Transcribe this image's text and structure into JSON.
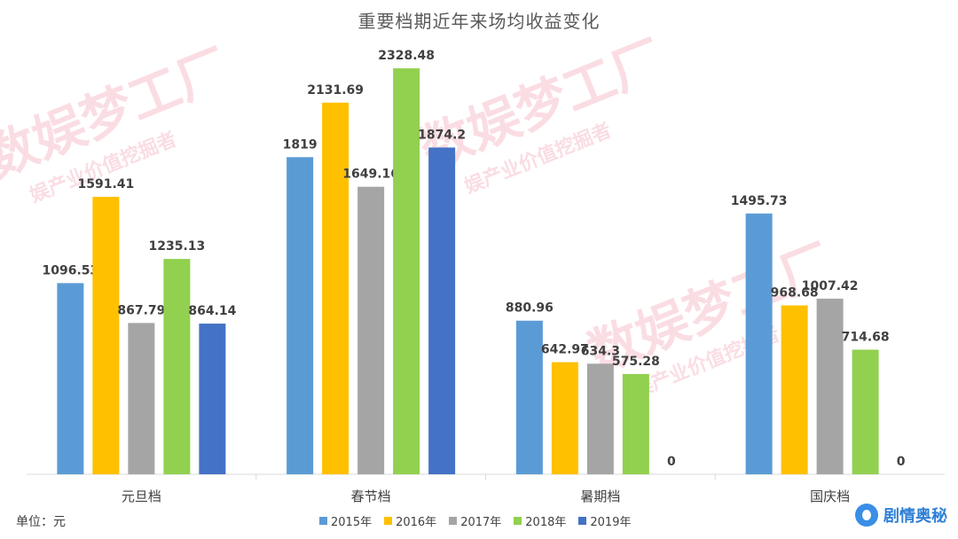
{
  "chart_data": {
    "type": "bar",
    "title": "重要档期近年来场均收益变化",
    "categories": [
      "元旦档",
      "春节档",
      "暑期档",
      "国庆档"
    ],
    "series": [
      {
        "name": "2015年",
        "color": "#5b9bd5",
        "values": [
          1096.53,
          1819,
          880.96,
          1495.73
        ],
        "labels": [
          "1096.53",
          "1819",
          "880.96",
          "1495.73"
        ]
      },
      {
        "name": "2016年",
        "color": "#ffc000",
        "values": [
          1591.41,
          2131.69,
          642.97,
          968.68
        ],
        "labels": [
          "1591.41",
          "2131.69",
          "642.97",
          "968.68"
        ]
      },
      {
        "name": "2017年",
        "color": "#a5a5a5",
        "values": [
          867.79,
          1649.16,
          634.3,
          1007.42
        ],
        "labels": [
          "867.79",
          "1649.16",
          "634.3",
          "1007.42"
        ]
      },
      {
        "name": "2018年",
        "color": "#92d050",
        "values": [
          1235.13,
          2328.48,
          575.28,
          714.68
        ],
        "labels": [
          "1235.13",
          "2328.48",
          "575.28",
          "714.68"
        ]
      },
      {
        "name": "2019年",
        "color": "#4472c4",
        "values": [
          864.14,
          1874.2,
          0,
          0
        ],
        "labels": [
          "864.14",
          "1874.2",
          "0",
          "0"
        ]
      }
    ],
    "ylim": [
      0,
      2400
    ],
    "ylabel": "",
    "xlabel": "",
    "grid": false,
    "legend_position": "bottom",
    "unit_label": "单位：元"
  },
  "watermark": {
    "text": "数娱梦工厂",
    "subtext": "娱产业价值挖掘者"
  },
  "brand": {
    "name": "剧情奥秘"
  }
}
